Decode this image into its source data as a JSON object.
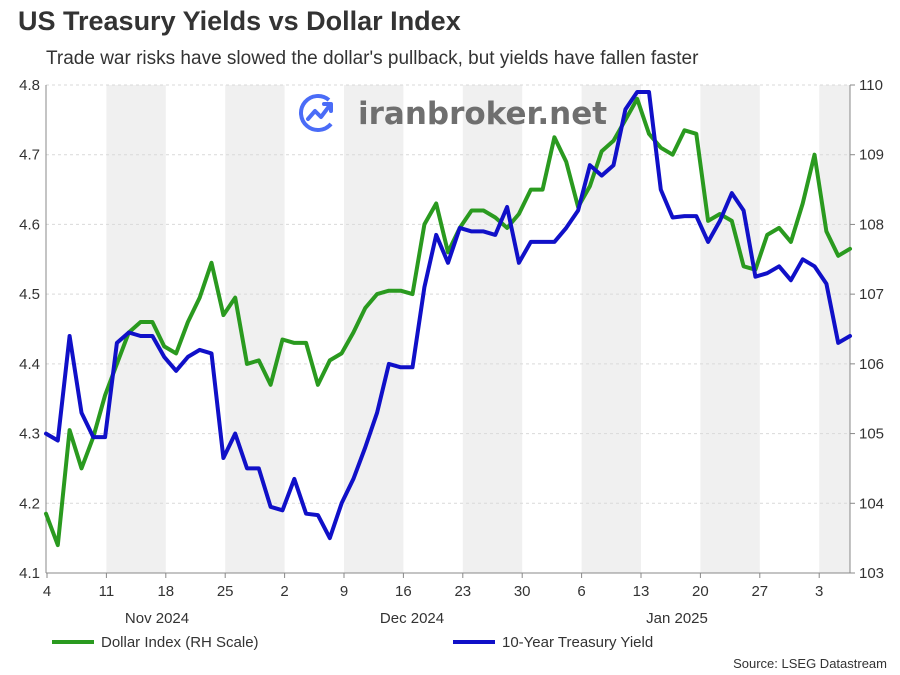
{
  "title": "US Treasury Yields vs Dollar Index",
  "subtitle": "Trade war risks have slowed the dollar's pullback, but yields have fallen faster",
  "source": "Source: LSEG Datastream",
  "watermark": {
    "text": "iranbroker.net",
    "icon": "chart-trend-logo-icon"
  },
  "colors": {
    "dollar": "#2a9a1f",
    "yield": "#1010c8",
    "band": "#f0f0f0",
    "grid": "#d9d9d9",
    "axis": "#888888"
  },
  "chart_data": {
    "type": "line",
    "x_tick_labels": [
      "4",
      "11",
      "18",
      "25",
      "2",
      "9",
      "16",
      "23",
      "30",
      "6",
      "13",
      "20",
      "27",
      "3"
    ],
    "month_labels": [
      "Nov 2024",
      "Dec 2024",
      "Jan 2025"
    ],
    "y_left": {
      "min": 4.1,
      "max": 4.8,
      "ticks": [
        "4.1",
        "4.2",
        "4.3",
        "4.4",
        "4.5",
        "4.6",
        "4.7",
        "4.8"
      ]
    },
    "y_right": {
      "min": 103,
      "max": 110,
      "ticks": [
        "103",
        "104",
        "105",
        "106",
        "107",
        "108",
        "109",
        "110"
      ]
    },
    "grid": true,
    "legend_position": "bottom",
    "series": [
      {
        "name": "Dollar Index (RH Scale)",
        "axis": "right",
        "values": [
          103.85,
          103.4,
          105.05,
          104.5,
          104.95,
          105.55,
          106.0,
          106.45,
          106.6,
          106.6,
          106.25,
          106.15,
          106.6,
          106.95,
          107.45,
          106.7,
          106.95,
          106.0,
          106.05,
          105.7,
          106.35,
          106.3,
          106.3,
          105.7,
          106.05,
          106.15,
          106.45,
          106.8,
          107.0,
          107.05,
          107.05,
          107.0,
          108.0,
          108.3,
          107.6,
          107.95,
          108.2,
          108.2,
          108.1,
          107.95,
          108.15,
          108.5,
          108.5,
          109.25,
          108.9,
          108.25,
          108.55,
          109.05,
          109.2,
          109.5,
          109.8,
          109.3,
          109.1,
          109.0,
          109.35,
          109.3,
          108.05,
          108.15,
          108.05,
          107.4,
          107.35,
          107.85,
          107.95,
          107.75,
          108.3,
          109.0,
          107.9,
          107.55,
          107.65
        ]
      },
      {
        "name": "10-Year Treasury Yield",
        "axis": "left",
        "values": [
          4.3,
          4.29,
          4.44,
          4.33,
          4.295,
          4.295,
          4.43,
          4.445,
          4.44,
          4.44,
          4.41,
          4.39,
          4.41,
          4.42,
          4.415,
          4.265,
          4.3,
          4.25,
          4.25,
          4.195,
          4.19,
          4.235,
          4.185,
          4.183,
          4.15,
          4.2,
          4.235,
          4.28,
          4.33,
          4.4,
          4.395,
          4.395,
          4.51,
          4.585,
          4.545,
          4.595,
          4.59,
          4.59,
          4.585,
          4.625,
          4.545,
          4.575,
          4.575,
          4.575,
          4.595,
          4.62,
          4.685,
          4.67,
          4.685,
          4.765,
          4.79,
          4.79,
          4.65,
          4.61,
          4.612,
          4.612,
          4.575,
          4.605,
          4.645,
          4.62,
          4.525,
          4.53,
          4.54,
          4.52,
          4.55,
          4.54,
          4.515,
          4.43,
          4.44
        ]
      }
    ]
  }
}
